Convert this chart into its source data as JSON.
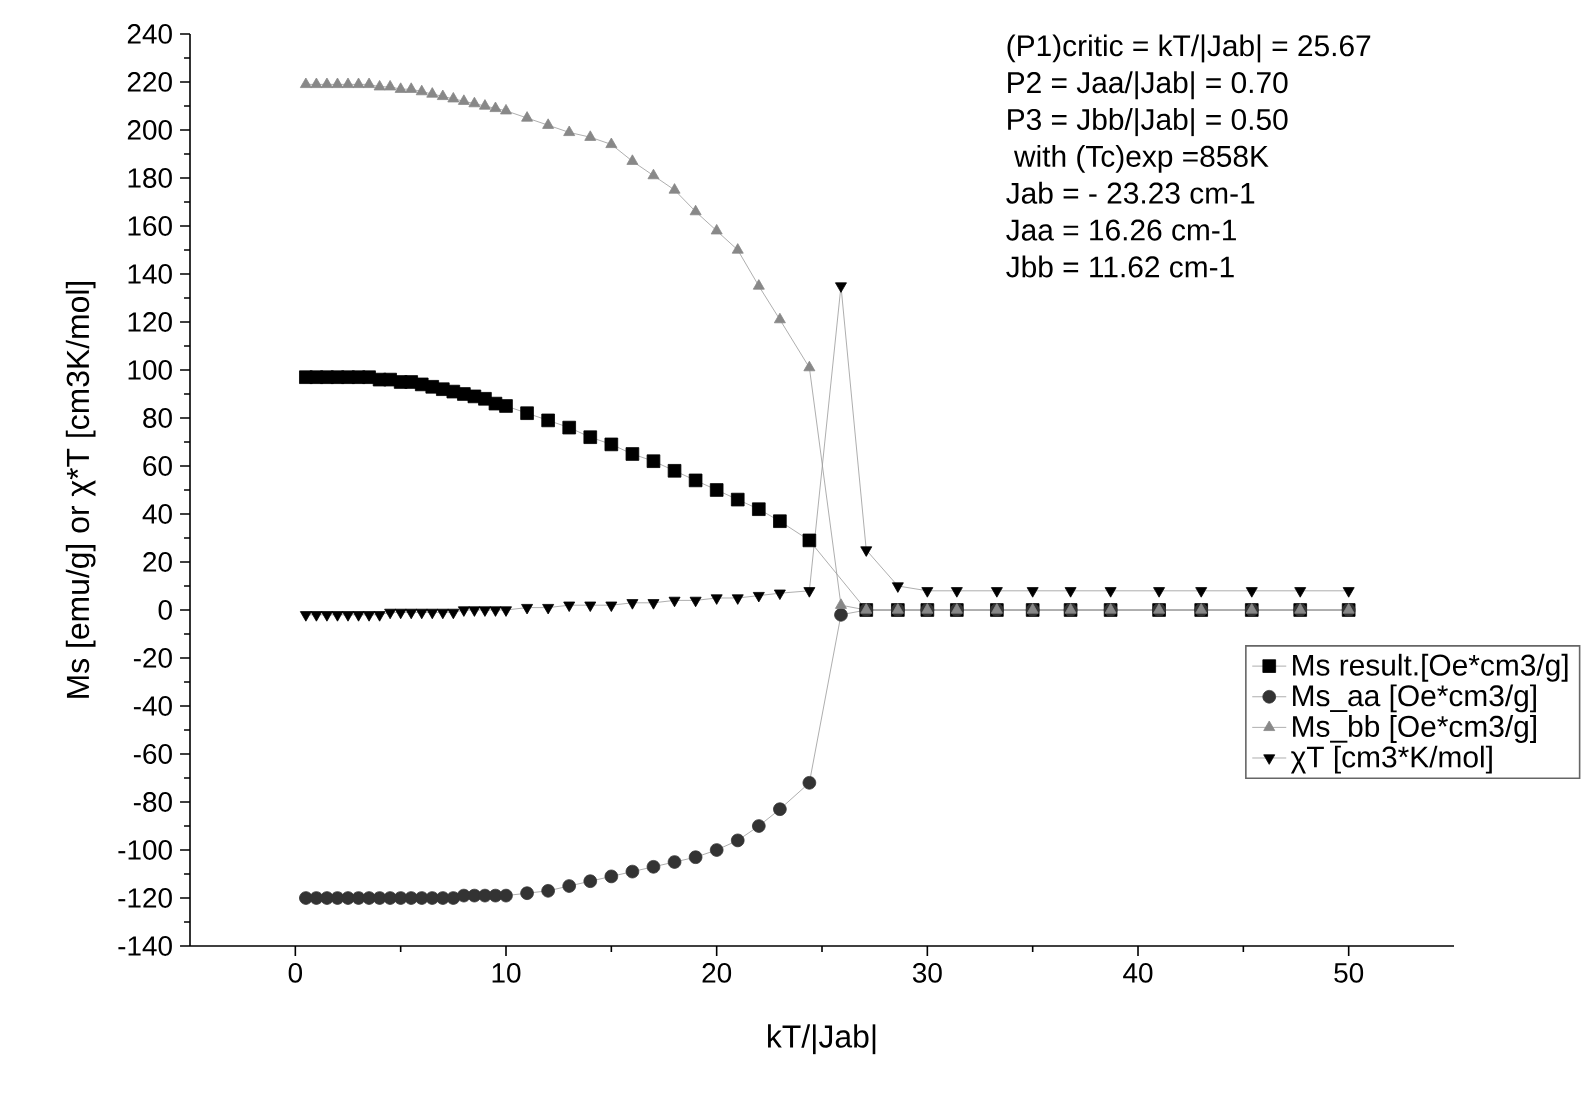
{
  "chart_data": {
    "type": "line",
    "xlabel": "kT/|Jab|",
    "ylabel": "Ms [emu/g] or χ*T [cm3K/mol]",
    "x": [
      0.5,
      1,
      1.5,
      2,
      2.5,
      3,
      3.5,
      4,
      4.5,
      5,
      5.5,
      6,
      6.5,
      7,
      7.5,
      8,
      8.5,
      9,
      9.5,
      10,
      11,
      12,
      13,
      14,
      15,
      16,
      17,
      18,
      19,
      20,
      21,
      22,
      23,
      24.4,
      25.9,
      27.1,
      28.6,
      30,
      31.4,
      33.3,
      35,
      36.8,
      38.7,
      41,
      43,
      45.4,
      47.7,
      50
    ],
    "xlim": [
      -5,
      55
    ],
    "xticks": [
      0,
      10,
      20,
      30,
      40,
      50
    ],
    "ylim": [
      -140,
      240
    ],
    "yticks": [
      -140,
      -120,
      -100,
      -80,
      -60,
      -40,
      -20,
      0,
      20,
      40,
      60,
      80,
      100,
      120,
      140,
      160,
      180,
      200,
      220,
      240
    ],
    "legend": "right",
    "line_style": "solid",
    "series": [
      {
        "name": "Ms result.[Oe*cm3/g]",
        "color": "#000000",
        "marker": "square",
        "values": [
          97,
          97,
          97,
          97,
          97,
          97,
          97,
          96,
          96,
          95,
          95,
          94,
          93,
          92,
          91,
          90,
          89,
          88,
          86,
          85,
          82,
          79,
          76,
          72,
          69,
          65,
          62,
          58,
          54,
          50,
          46,
          42,
          37,
          29,
          null,
          0,
          0,
          0,
          0,
          0,
          0,
          0,
          0,
          0,
          0,
          0,
          0,
          0
        ]
      },
      {
        "name": "Ms_aa [Oe*cm3/g]",
        "color": "#333333",
        "marker": "circle",
        "values": [
          -120,
          -120,
          -120,
          -120,
          -120,
          -120,
          -120,
          -120,
          -120,
          -120,
          -120,
          -120,
          -120,
          -120,
          -120,
          -119,
          -119,
          -119,
          -119,
          -119,
          -118,
          -117,
          -115,
          -113,
          -111,
          -109,
          -107,
          -105,
          -103,
          -100,
          -96,
          -90,
          -83,
          -72,
          -2,
          0,
          0,
          0,
          0,
          0,
          0,
          0,
          0,
          0,
          0,
          0,
          0,
          0
        ]
      },
      {
        "name": "Ms_bb [Oe*cm3/g]",
        "color": "#888888",
        "marker": "triangle",
        "values": [
          219,
          219,
          219,
          219,
          219,
          219,
          219,
          218,
          218,
          217,
          217,
          216,
          215,
          214,
          213,
          212,
          211,
          210,
          209,
          208,
          205,
          202,
          199,
          197,
          194,
          187,
          181,
          175,
          166,
          158,
          150,
          135,
          121,
          101,
          2,
          0,
          0,
          0,
          0,
          0,
          0,
          0,
          0,
          0,
          0,
          0,
          0,
          0
        ]
      },
      {
        "name": "χT [cm3*K/mol]",
        "color": "#000000",
        "marker": "triangle-down",
        "values": [
          -2,
          -2,
          -2,
          -2,
          -2,
          -2,
          -2,
          -2,
          -1,
          -1,
          -1,
          -1,
          -1,
          -1,
          -1,
          0,
          0,
          0,
          0,
          0,
          1,
          1,
          2,
          2,
          2,
          3,
          3,
          4,
          4,
          5,
          5,
          6,
          7,
          8,
          135,
          25,
          10,
          8,
          8,
          8,
          8,
          8,
          8,
          8,
          8,
          8,
          8,
          8
        ]
      }
    ],
    "annotations": [
      "(P1)critic = kT/|Jab| = 25.67",
      "P2 =        Jaa/|Jab| =  0.70",
      "P3 =        Jbb/|Jab| =  0.50",
      " with (Tc)exp =858K",
      "Jab = - 23.23 cm-1",
      "Jaa =   16.26 cm-1",
      "Jbb =   11.62 cm-1"
    ]
  }
}
